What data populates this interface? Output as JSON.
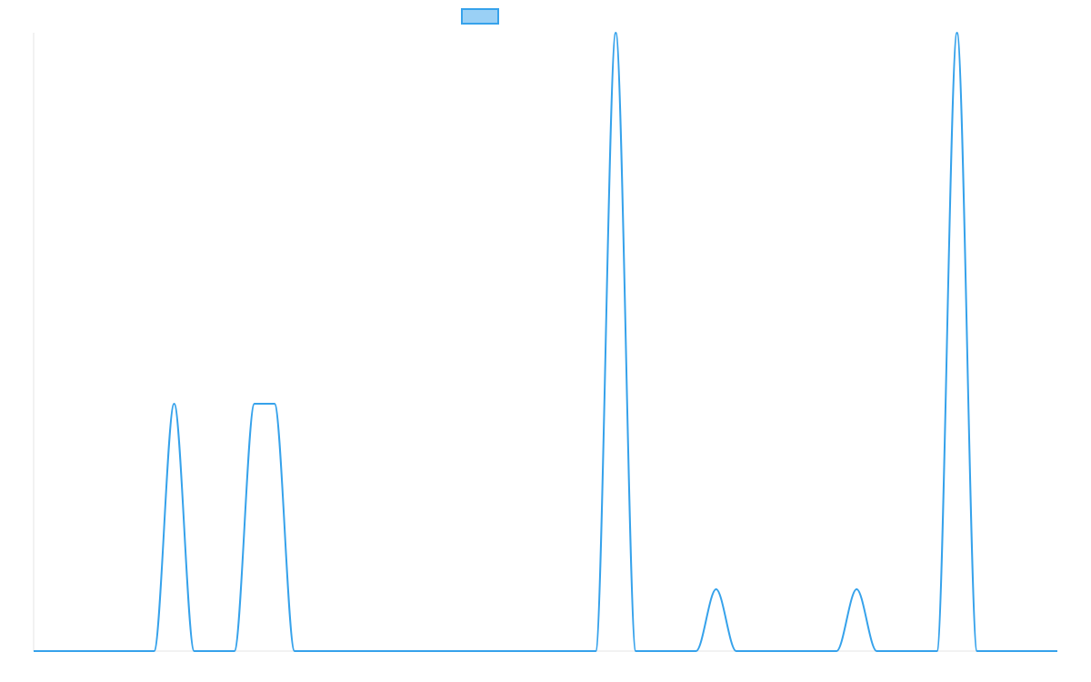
{
  "chart_data": {
    "type": "line",
    "title": "",
    "xlabel": "",
    "ylabel": "",
    "x": [
      0,
      1,
      2,
      3,
      4,
      5,
      6,
      7,
      8,
      9,
      10,
      11,
      12,
      13,
      14,
      15,
      16,
      17,
      18,
      19,
      20,
      21,
      22,
      23,
      24,
      25,
      26,
      27,
      28,
      29,
      30,
      31,
      32,
      33,
      34,
      35,
      36,
      37,
      38,
      39,
      40,
      41,
      42,
      43,
      44,
      45,
      46,
      47,
      48,
      49,
      50,
      51
    ],
    "series": [
      {
        "name": "",
        "color": "#36a2eb",
        "fill": "#9ad0f5",
        "values": [
          0,
          0,
          0,
          0,
          0,
          0,
          0,
          4,
          0,
          0,
          0,
          4,
          4,
          0,
          0,
          0,
          0,
          0,
          0,
          0,
          0,
          0,
          0,
          0,
          0,
          0,
          0,
          0,
          0,
          10,
          0,
          0,
          0,
          0,
          1,
          0,
          0,
          0,
          0,
          0,
          0,
          1,
          0,
          0,
          0,
          0,
          10,
          0,
          0,
          0,
          0,
          0
        ]
      }
    ],
    "xlim": [
      0,
      51
    ],
    "ylim": [
      0,
      10
    ],
    "grid": false,
    "legend": "top-center",
    "axis_color": "#e5e5e5"
  }
}
